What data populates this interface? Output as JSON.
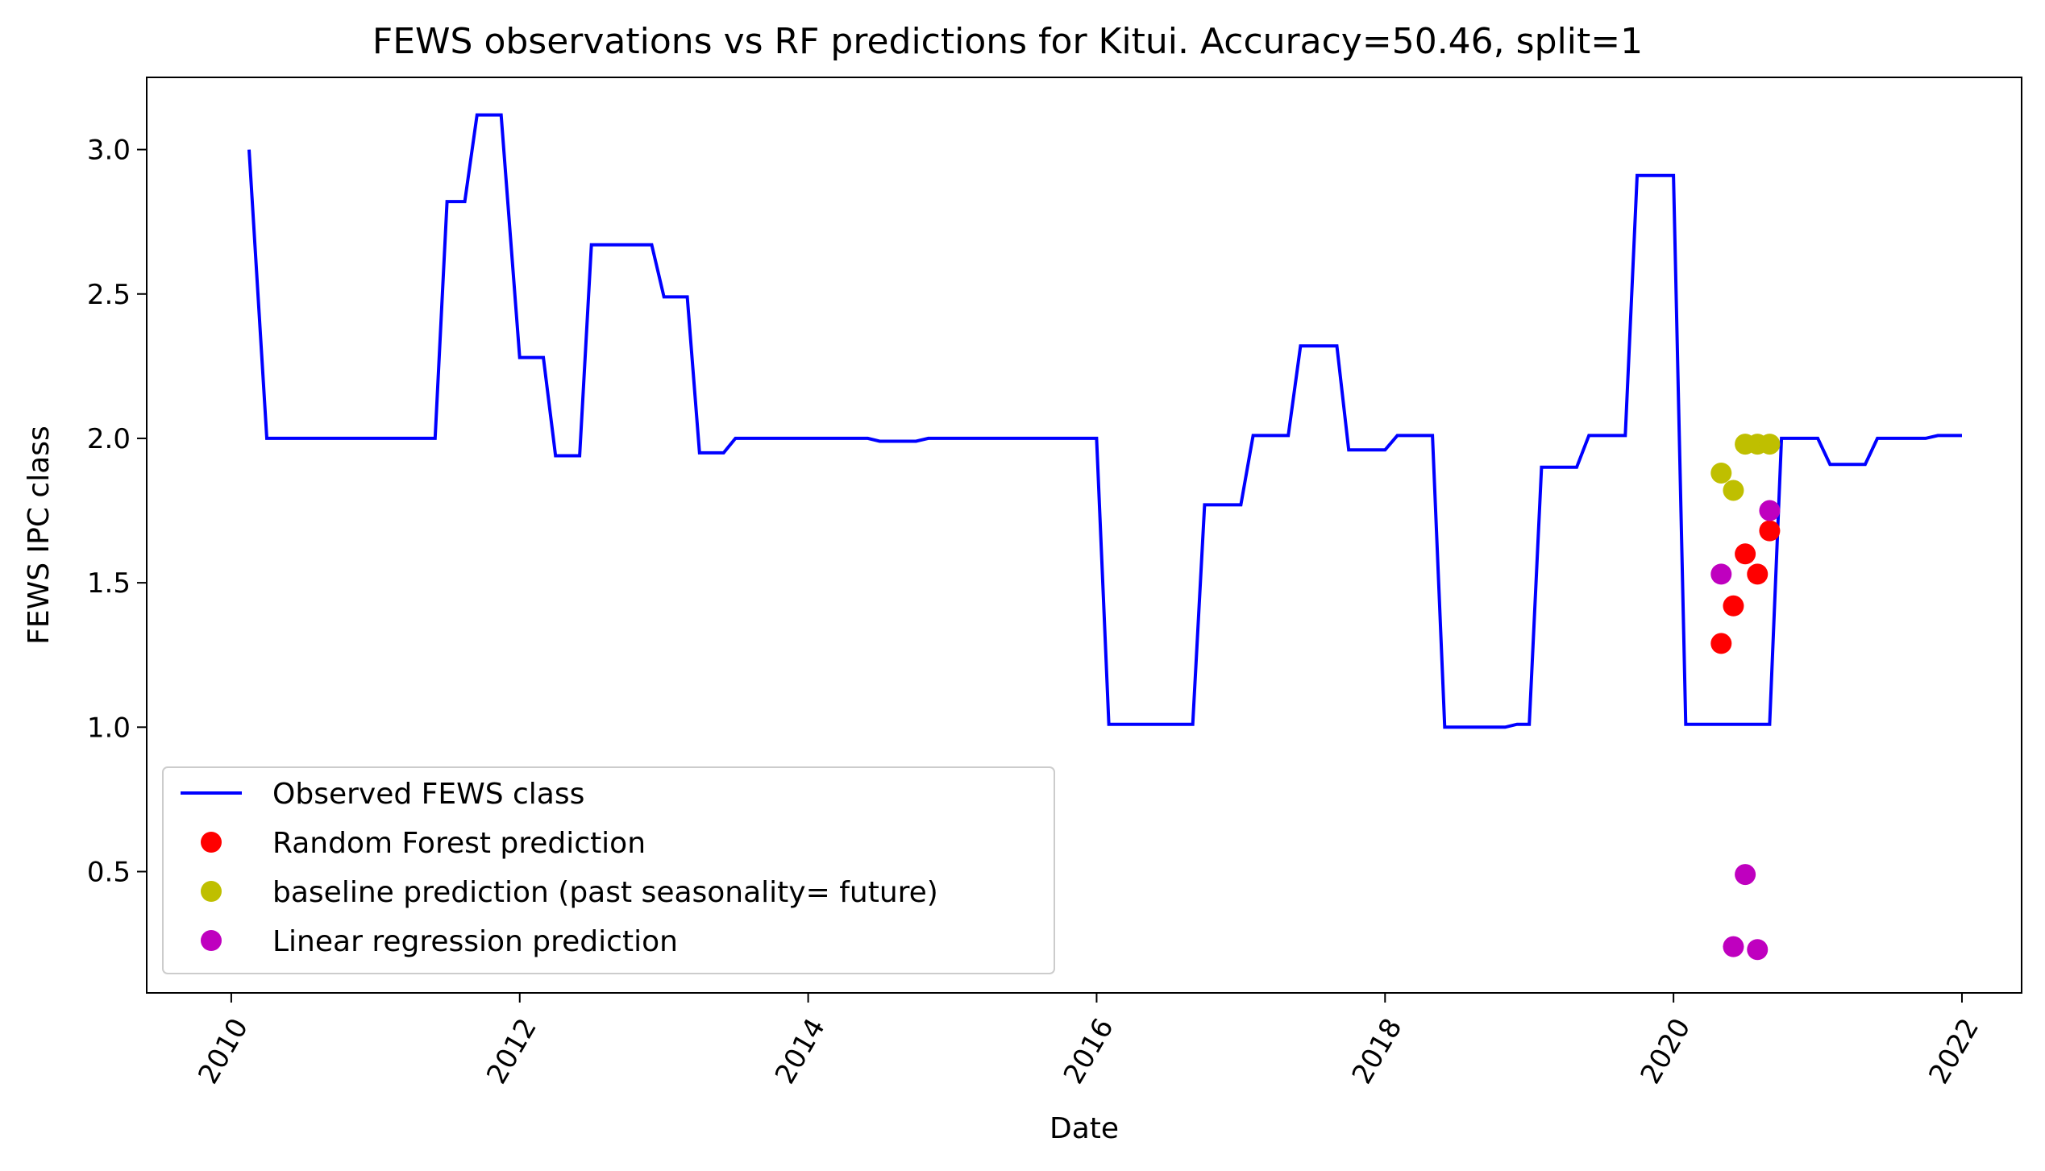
{
  "chart_data": {
    "type": "line",
    "title": "FEWS observations vs RF predictions for Kitui. Accuracy=50.46, split=1",
    "xlabel": "Date",
    "ylabel": "FEWS IPC class",
    "xlim": [
      "2009-06-01",
      "2022-06-01"
    ],
    "ylim": [
      0.08,
      3.25
    ],
    "x_ticks": [
      "2010",
      "2012",
      "2014",
      "2016",
      "2018",
      "2020",
      "2022"
    ],
    "y_ticks": [
      "0.5",
      "1.0",
      "1.5",
      "2.0",
      "2.5",
      "3.0"
    ],
    "grid": false,
    "legend_position": "lower-left",
    "colors": {
      "observed": "#0000ff",
      "random_forest": "#ff0000",
      "baseline": "#bfbf00",
      "linear_regression": "#bf00bf"
    },
    "series": [
      {
        "name": "Observed FEWS class",
        "kind": "line",
        "color": "#0000ff",
        "points": [
          [
            "2010-02-15",
            3.0
          ],
          [
            "2010-04-01",
            2.0
          ],
          [
            "2011-06-01",
            2.0
          ],
          [
            "2011-07-01",
            2.82
          ],
          [
            "2011-08-15",
            2.82
          ],
          [
            "2011-09-15",
            3.12
          ],
          [
            "2011-11-15",
            3.12
          ],
          [
            "2012-01-01",
            2.28
          ],
          [
            "2012-03-01",
            2.28
          ],
          [
            "2012-04-01",
            1.94
          ],
          [
            "2012-06-01",
            1.94
          ],
          [
            "2012-07-01",
            2.67
          ],
          [
            "2012-12-01",
            2.67
          ],
          [
            "2013-01-01",
            2.49
          ],
          [
            "2013-03-01",
            2.49
          ],
          [
            "2013-04-01",
            1.95
          ],
          [
            "2013-06-01",
            1.95
          ],
          [
            "2013-07-01",
            2.0
          ],
          [
            "2014-06-01",
            2.0
          ],
          [
            "2014-07-01",
            1.99
          ],
          [
            "2014-10-01",
            1.99
          ],
          [
            "2014-11-01",
            2.0
          ],
          [
            "2016-01-01",
            2.0
          ],
          [
            "2016-02-01",
            1.01
          ],
          [
            "2016-09-01",
            1.01
          ],
          [
            "2016-10-01",
            1.77
          ],
          [
            "2017-01-01",
            1.77
          ],
          [
            "2017-02-01",
            2.01
          ],
          [
            "2017-05-01",
            2.01
          ],
          [
            "2017-06-01",
            2.32
          ],
          [
            "2017-09-01",
            2.32
          ],
          [
            "2017-10-01",
            1.96
          ],
          [
            "2018-01-01",
            1.96
          ],
          [
            "2018-02-01",
            2.01
          ],
          [
            "2018-05-01",
            2.01
          ],
          [
            "2018-06-01",
            1.0
          ],
          [
            "2018-11-01",
            1.0
          ],
          [
            "2018-12-01",
            1.01
          ],
          [
            "2019-01-01",
            1.01
          ],
          [
            "2019-02-01",
            1.9
          ],
          [
            "2019-05-01",
            1.9
          ],
          [
            "2019-06-01",
            2.01
          ],
          [
            "2019-09-01",
            2.01
          ],
          [
            "2019-10-01",
            2.91
          ],
          [
            "2020-01-01",
            2.91
          ],
          [
            "2020-02-01",
            1.01
          ],
          [
            "2020-09-01",
            1.01
          ],
          [
            "2020-10-01",
            2.0
          ],
          [
            "2021-01-01",
            2.0
          ],
          [
            "2021-02-01",
            1.91
          ],
          [
            "2021-05-01",
            1.91
          ],
          [
            "2021-06-01",
            2.0
          ],
          [
            "2021-10-01",
            2.0
          ],
          [
            "2021-11-01",
            2.01
          ],
          [
            "2022-01-01",
            2.01
          ]
        ]
      },
      {
        "name": "Random Forest prediction",
        "kind": "scatter",
        "color": "#ff0000",
        "points": [
          [
            "2020-05-01",
            1.29
          ],
          [
            "2020-06-01",
            1.42
          ],
          [
            "2020-07-01",
            1.6
          ],
          [
            "2020-08-01",
            1.53
          ],
          [
            "2020-09-01",
            1.68
          ]
        ]
      },
      {
        "name": "baseline prediction (past seasonality= future)",
        "kind": "scatter",
        "color": "#bfbf00",
        "points": [
          [
            "2020-05-01",
            1.88
          ],
          [
            "2020-06-01",
            1.82
          ],
          [
            "2020-07-01",
            1.98
          ],
          [
            "2020-08-01",
            1.98
          ],
          [
            "2020-09-01",
            1.98
          ]
        ]
      },
      {
        "name": "Linear regression prediction",
        "kind": "scatter",
        "color": "#bf00bf",
        "points": [
          [
            "2020-05-01",
            1.53
          ],
          [
            "2020-06-01",
            0.24
          ],
          [
            "2020-07-01",
            0.49
          ],
          [
            "2020-08-01",
            0.23
          ],
          [
            "2020-09-01",
            1.75
          ]
        ]
      }
    ]
  }
}
